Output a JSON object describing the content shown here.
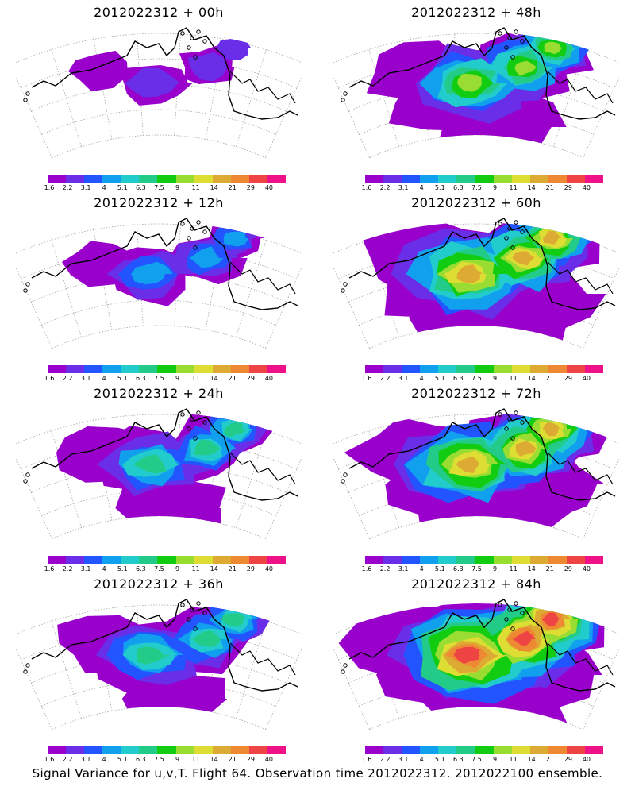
{
  "panels": [
    {
      "title": "2012022312 + 00h",
      "intensity": 0
    },
    {
      "title": "2012022312 + 48h",
      "intensity": 3
    },
    {
      "title": "2012022312 + 12h",
      "intensity": 1
    },
    {
      "title": "2012022312 + 60h",
      "intensity": 4
    },
    {
      "title": "2012022312 + 24h",
      "intensity": 2
    },
    {
      "title": "2012022312 + 72h",
      "intensity": 4
    },
    {
      "title": "2012022312 + 36h",
      "intensity": 2
    },
    {
      "title": "2012022312 + 84h",
      "intensity": 5
    }
  ],
  "colorbar": {
    "labels": [
      "1.6",
      "2.2",
      "3.1",
      "4",
      "5.1",
      "6.3",
      "7.5",
      "9",
      "11",
      "14",
      "21",
      "29",
      "40"
    ],
    "colors": [
      "#9900cc",
      "#6a2ee8",
      "#2255ff",
      "#11a0ee",
      "#22cccc",
      "#22cc88",
      "#11cc11",
      "#99dd33",
      "#dddd33",
      "#ddaa33",
      "#ee8833",
      "#ee4444",
      "#ee1188"
    ]
  },
  "footer": "Signal Variance for u,v,T. Flight 64. Observation time 2012022312. 2012022100 ensemble."
}
